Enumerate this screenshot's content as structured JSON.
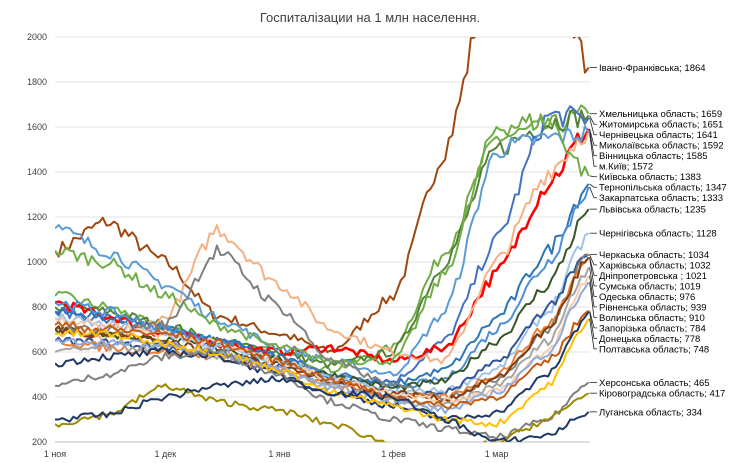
{
  "chart_data": {
    "type": "line",
    "title": "Госпиталізации на 1 млн населення.",
    "xlabel": "",
    "ylabel": "",
    "ylim": [
      200,
      2000
    ],
    "yticks": [
      "200",
      "400",
      "600",
      "800",
      "1000",
      "1200",
      "1400",
      "1600",
      "1800",
      "2000"
    ],
    "xticks": [
      {
        "date": "2020-11-01",
        "label": "1 ноя"
      },
      {
        "date": "2020-12-01",
        "label": "1 дек"
      },
      {
        "date": "2021-01-01",
        "label": "1 янв"
      },
      {
        "date": "2021-02-01",
        "label": "1 фев"
      },
      {
        "date": "2021-03-01",
        "label": "1 мар"
      }
    ],
    "grid": true,
    "legend": "data labels at line ends (right)",
    "x": [
      "2020-11-01",
      "2020-11-15",
      "2020-12-01",
      "2020-12-15",
      "2021-01-01",
      "2021-01-15",
      "2021-02-01",
      "2021-02-15",
      "2021-03-01",
      "2021-03-15",
      "2021-03-26"
    ],
    "series": [
      {
        "name": "Івано-Франківська",
        "label": "Івано-Франківська; 1864",
        "color": "#9e480e",
        "values": [
          1050,
          1180,
          1000,
          760,
          680,
          600,
          850,
          1500,
          2400,
          2400,
          1864
        ]
      },
      {
        "name": "Хмельницька область",
        "label": "Хмельницька область; 1659",
        "color": "#70ad47",
        "values": [
          850,
          800,
          700,
          650,
          600,
          520,
          620,
          1050,
          1550,
          1600,
          1659
        ]
      },
      {
        "name": "Житомирська область",
        "label": "Житомирська область; 1651",
        "color": "#548235",
        "values": [
          800,
          780,
          720,
          650,
          600,
          540,
          600,
          1000,
          1500,
          1620,
          1651
        ]
      },
      {
        "name": "Чернівецька область",
        "label": "Чернівецька область; 1641",
        "color": "#4472c4",
        "values": [
          780,
          750,
          700,
          650,
          580,
          500,
          470,
          650,
          1100,
          1650,
          1641
        ]
      },
      {
        "name": "Миколаївська область",
        "label": "Миколаївська область; 1592",
        "color": "#ff0000",
        "values": [
          820,
          760,
          680,
          640,
          600,
          620,
          560,
          620,
          950,
          1350,
          1592
        ]
      },
      {
        "name": "Вінницька область",
        "label": "Вінницька область; 1585",
        "color": "#f4b183",
        "values": [
          700,
          650,
          750,
          1150,
          900,
          700,
          600,
          560,
          1000,
          1400,
          1585
        ]
      },
      {
        "name": "м.Київ",
        "label": "м.Київ; 1572",
        "color": "#5b9bd5",
        "values": [
          1150,
          1050,
          900,
          750,
          620,
          560,
          500,
          780,
          1500,
          1550,
          1572
        ]
      },
      {
        "name": "Київська область",
        "label": "Київська область; 1383",
        "color": "#70ad47",
        "values": [
          1050,
          1000,
          850,
          720,
          620,
          560,
          560,
          950,
          1600,
          1630,
          1383
        ]
      },
      {
        "name": "Тернопільська область",
        "label": "Тернопільська область; 1347",
        "color": "#2e75b6",
        "values": [
          780,
          750,
          700,
          650,
          580,
          480,
          460,
          520,
          750,
          1050,
          1347
        ]
      },
      {
        "name": "Закарпатська область",
        "label": "Закарпатська область; 1333",
        "color": "#4a90d9",
        "values": [
          820,
          780,
          700,
          640,
          560,
          490,
          440,
          480,
          700,
          1000,
          1333
        ]
      },
      {
        "name": "Львівська область",
        "label": "Львівська область; 1235",
        "color": "#375623",
        "values": [
          700,
          680,
          650,
          620,
          560,
          500,
          440,
          470,
          650,
          900,
          1235
        ]
      },
      {
        "name": "Чернігівська область",
        "label": "Чернігівська область; 1128",
        "color": "#9dc3e6",
        "values": [
          750,
          720,
          680,
          620,
          560,
          480,
          420,
          430,
          520,
          780,
          1128
        ]
      },
      {
        "name": "Черкаська область",
        "label": "Черкаська область; 1034",
        "color": "#2f5597",
        "values": [
          650,
          640,
          620,
          590,
          540,
          470,
          400,
          420,
          550,
          800,
          1034
        ]
      },
      {
        "name": "Харківська область",
        "label": "Харківська область; 1032",
        "color": "#808080",
        "values": [
          700,
          700,
          720,
          1050,
          800,
          560,
          450,
          400,
          480,
          700,
          1032
        ]
      },
      {
        "name": "Сумська область",
        "label": "Сумська область; 1019",
        "color": "#ed7d31",
        "values": [
          650,
          620,
          600,
          580,
          520,
          450,
          400,
          400,
          500,
          720,
          1019
        ]
      },
      {
        "name": "Дніпропетровська",
        "label": "Дніпропетровська ; 1021",
        "color": "#843c0c",
        "values": [
          700,
          680,
          650,
          600,
          540,
          470,
          420,
          390,
          480,
          700,
          1021
        ]
      },
      {
        "name": "Одеська область",
        "label": "Одеська область; 976",
        "color": "#a5a5a5",
        "values": [
          600,
          620,
          620,
          580,
          520,
          450,
          380,
          360,
          450,
          650,
          976
        ]
      },
      {
        "name": "Рівненська область",
        "label": "Рівненська область; 939",
        "color": "#f8cbad",
        "values": [
          750,
          720,
          680,
          640,
          560,
          480,
          420,
          380,
          430,
          600,
          939
        ]
      },
      {
        "name": "Волинська область",
        "label": "Волинська область; 910",
        "color": "#8faadc",
        "values": [
          650,
          640,
          630,
          600,
          520,
          440,
          380,
          340,
          420,
          600,
          910
        ]
      },
      {
        "name": "Запорізька область",
        "label": "Запорізька область; 784",
        "color": "#c55a11",
        "values": [
          720,
          700,
          680,
          640,
          560,
          480,
          400,
          360,
          400,
          560,
          784
        ]
      },
      {
        "name": "Донецька область",
        "label": "Донецька область; 778",
        "color": "#203864",
        "values": [
          550,
          580,
          600,
          580,
          500,
          420,
          360,
          300,
          330,
          500,
          778
        ]
      },
      {
        "name": "Полтавська область",
        "label": "Полтавська область; 748",
        "color": "#ffc000",
        "values": [
          680,
          680,
          640,
          600,
          520,
          420,
          360,
          300,
          280,
          450,
          748
        ]
      },
      {
        "name": "Херсонська область",
        "label": "Херсонська область; 465",
        "color": "#7f7f7f",
        "values": [
          450,
          500,
          580,
          600,
          500,
          380,
          300,
          260,
          220,
          300,
          465
        ]
      },
      {
        "name": "Кіровоградська область",
        "label": "Кіровоградська область; 417",
        "color": "#9c8b00",
        "values": [
          280,
          320,
          450,
          380,
          340,
          280,
          190,
          150,
          200,
          300,
          417
        ]
      },
      {
        "name": "Луганська область",
        "label": "Луганська область; 334",
        "color": "#1f3864",
        "values": [
          300,
          320,
          400,
          450,
          480,
          420,
          400,
          300,
          200,
          230,
          334
        ]
      }
    ]
  }
}
